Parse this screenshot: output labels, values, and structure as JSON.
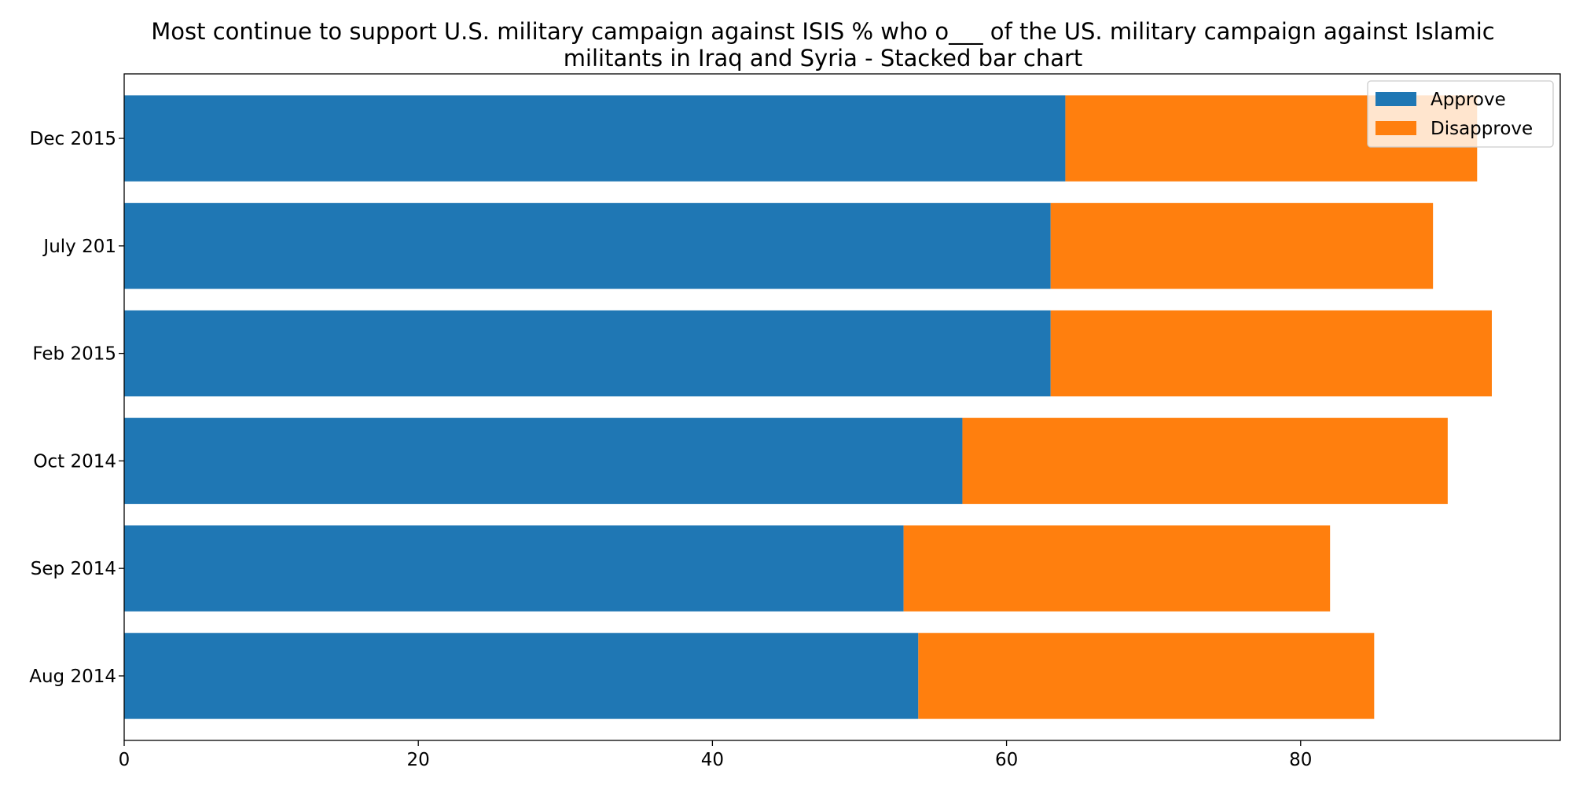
{
  "chart_data": {
    "type": "bar",
    "orientation": "horizontal",
    "stacked": true,
    "title_lines": [
      "Most continue to support U.S. military campaign against ISIS % who o___ of the US. military campaign against Islamic",
      "militants in Iraq and Syria  - Stacked bar chart"
    ],
    "xlabel": "",
    "ylabel": "",
    "categories": [
      "Aug 2014",
      "Sep 2014",
      "Oct 2014",
      "Feb 2015",
      "July 201",
      "Dec 2015"
    ],
    "series": [
      {
        "name": "Approve",
        "values": [
          54,
          53,
          57,
          63,
          63,
          64
        ],
        "color": "#1f77b4"
      },
      {
        "name": "Disapprove",
        "values": [
          31,
          29,
          33,
          30,
          26,
          28
        ],
        "color": "#ff7f0e"
      }
    ],
    "xlim": [
      0,
      97.65
    ],
    "xticks": [
      0,
      20,
      40,
      60,
      80
    ],
    "grid": false,
    "legend_position": "top-right"
  }
}
